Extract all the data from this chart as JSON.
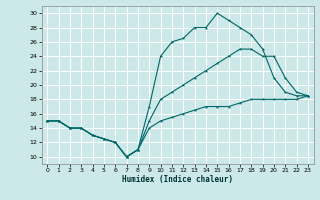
{
  "xlabel": "Humidex (Indice chaleur)",
  "bg_color": "#cce8e8",
  "grid_color": "#ffffff",
  "line_color": "#006666",
  "xlim": [
    -0.5,
    23.5
  ],
  "ylim": [
    9,
    31
  ],
  "xticks": [
    0,
    1,
    2,
    3,
    4,
    5,
    6,
    7,
    8,
    9,
    10,
    11,
    12,
    13,
    14,
    15,
    16,
    17,
    18,
    19,
    20,
    21,
    22,
    23
  ],
  "yticks": [
    10,
    12,
    14,
    16,
    18,
    20,
    22,
    24,
    26,
    28,
    30
  ],
  "line1_x": [
    0,
    1,
    2,
    3,
    4,
    5,
    6,
    7,
    8,
    9,
    10,
    11,
    12,
    13,
    14,
    15,
    16,
    17,
    18,
    19,
    20,
    21,
    22,
    23
  ],
  "line1_y": [
    15,
    15,
    14,
    14,
    13,
    12.5,
    12,
    10,
    11,
    17,
    24,
    26,
    26.5,
    28,
    28,
    30,
    29,
    28,
    27,
    25,
    21,
    19,
    18.5,
    18.5
  ],
  "line2_x": [
    0,
    1,
    2,
    3,
    4,
    5,
    6,
    7,
    8,
    9,
    10,
    11,
    12,
    13,
    14,
    15,
    16,
    17,
    18,
    19,
    20,
    21,
    22,
    23
  ],
  "line2_y": [
    15,
    15,
    14,
    14,
    13,
    12.5,
    12,
    10,
    11,
    15,
    18,
    19,
    20,
    21,
    22,
    23,
    24,
    25,
    25,
    24,
    24,
    21,
    19,
    18.5
  ],
  "line3_x": [
    0,
    1,
    2,
    3,
    4,
    5,
    6,
    7,
    8,
    9,
    10,
    11,
    12,
    13,
    14,
    15,
    16,
    17,
    18,
    19,
    20,
    21,
    22,
    23
  ],
  "line3_y": [
    15,
    15,
    14,
    14,
    13,
    12.5,
    12,
    10,
    11,
    14,
    15,
    15.5,
    16,
    16.5,
    17,
    17,
    17,
    17.5,
    18,
    18,
    18,
    18,
    18,
    18.5
  ]
}
